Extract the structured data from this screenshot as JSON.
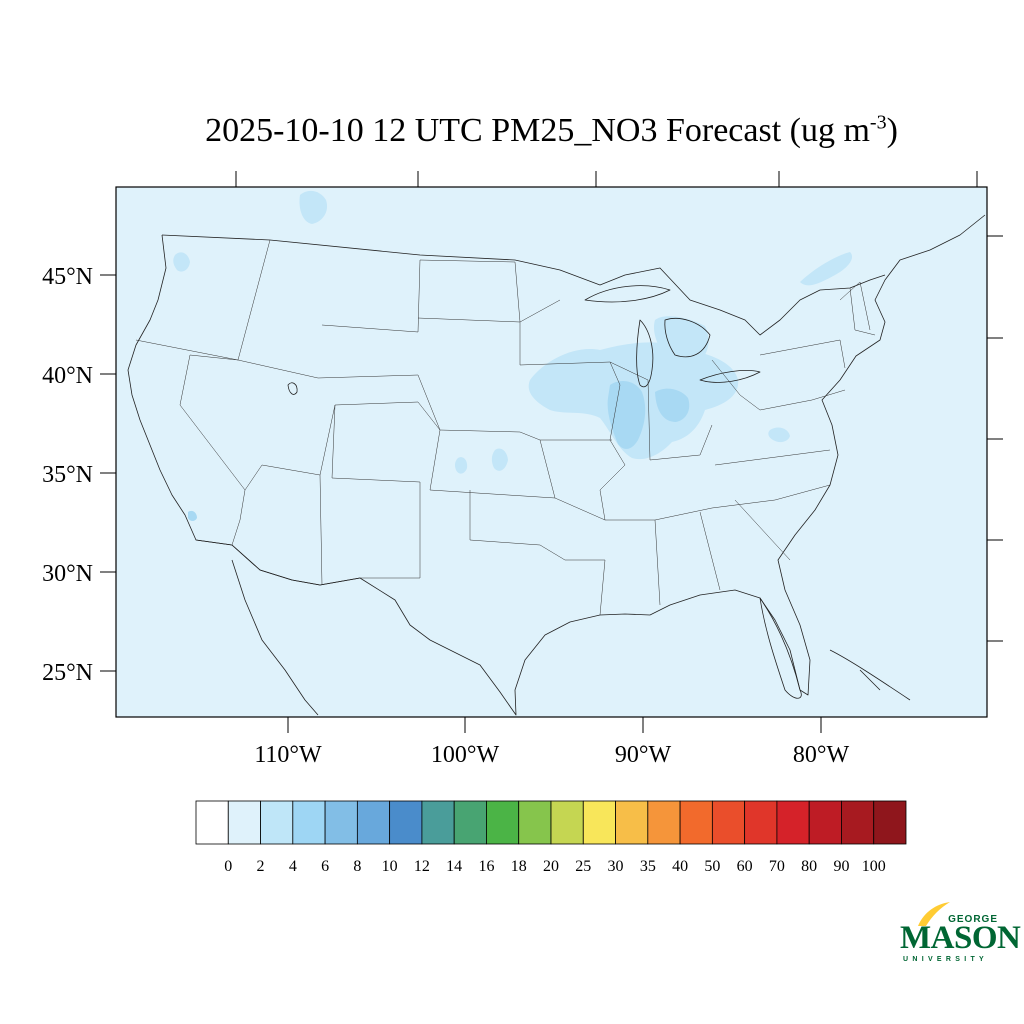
{
  "title": {
    "main": "2025-10-10 12 UTC PM25_NO3 Forecast (ug m",
    "superscript": "-3",
    "close": ")"
  },
  "map": {
    "background_color": "#dff2fb",
    "border_color": "#000000",
    "lat_labels": [
      "45°N",
      "40°N",
      "35°N",
      "30°N",
      "25°N"
    ],
    "lon_labels": [
      "110°W",
      "100°W",
      "90°W",
      "80°W"
    ]
  },
  "colorbar": {
    "labels": [
      "0",
      "2",
      "4",
      "6",
      "8",
      "10",
      "12",
      "14",
      "16",
      "18",
      "20",
      "25",
      "30",
      "35",
      "40",
      "50",
      "60",
      "70",
      "80",
      "90",
      "100"
    ],
    "colors": [
      "#ffffff",
      "#dff2fb",
      "#bfe6f8",
      "#9ed6f4",
      "#82bee6",
      "#68a8dc",
      "#4a8ccb",
      "#4a9d9a",
      "#48a472",
      "#4bb446",
      "#86c54c",
      "#c5d652",
      "#f8e65a",
      "#f7be48",
      "#f5953a",
      "#f26a2c",
      "#ea4e2b",
      "#e0362a",
      "#d52229",
      "#be1c25",
      "#a71a20",
      "#8f161c"
    ]
  },
  "logo": {
    "george": "GEORGE",
    "mason": "MASON",
    "university": "UNIVERSITY",
    "green": "#006633",
    "gold": "#ffcc33"
  }
}
